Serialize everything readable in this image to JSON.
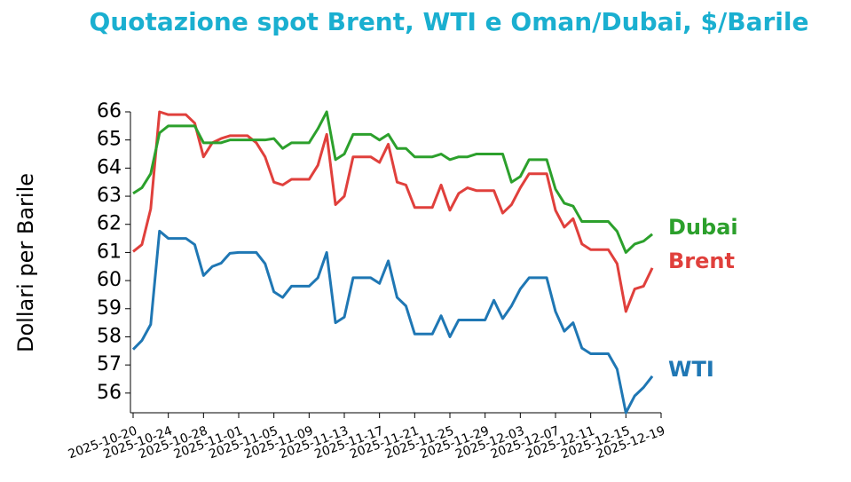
{
  "chart_data": {
    "type": "line",
    "title": "Quotazione spot Brent, WTI e Oman/Dubai, $/Barile",
    "y_label": "Dollari per Barile",
    "x": [
      "2025-10-20",
      "2025-10-21",
      "2025-10-22",
      "2025-10-23",
      "2025-10-24",
      "2025-10-25",
      "2025-10-26",
      "2025-10-27",
      "2025-10-28",
      "2025-10-29",
      "2025-10-30",
      "2025-10-31",
      "2025-11-01",
      "2025-11-02",
      "2025-11-03",
      "2025-11-04",
      "2025-11-05",
      "2025-11-06",
      "2025-11-07",
      "2025-11-08",
      "2025-11-09",
      "2025-11-10",
      "2025-11-11",
      "2025-11-12",
      "2025-11-13",
      "2025-11-14",
      "2025-11-15",
      "2025-11-16",
      "2025-11-17",
      "2025-11-18",
      "2025-11-19",
      "2025-11-20",
      "2025-11-21",
      "2025-11-22",
      "2025-11-23",
      "2025-11-24",
      "2025-11-25",
      "2025-11-26",
      "2025-11-27",
      "2025-11-28",
      "2025-11-29",
      "2025-11-30",
      "2025-12-01",
      "2025-12-02",
      "2025-12-03",
      "2025-12-04",
      "2025-12-05",
      "2025-12-06",
      "2025-12-07",
      "2025-12-08",
      "2025-12-09",
      "2025-12-10",
      "2025-12-11",
      "2025-12-12",
      "2025-12-13",
      "2025-12-14",
      "2025-12-15",
      "2025-12-16",
      "2025-12-17",
      "2025-12-18"
    ],
    "series": [
      {
        "name": "WTI",
        "color": "#1f77b4",
        "values": [
          57.55,
          57.87,
          58.44,
          61.76,
          61.5,
          61.5,
          61.5,
          61.28,
          60.18,
          60.5,
          60.62,
          60.97,
          61.0,
          61.0,
          61.0,
          60.6,
          59.6,
          59.4,
          59.8,
          59.8,
          59.8,
          60.1,
          61.0,
          58.5,
          58.7,
          60.1,
          60.1,
          60.1,
          59.9,
          60.7,
          59.4,
          59.1,
          58.1,
          58.1,
          58.1,
          58.75,
          58.0,
          58.6,
          58.6,
          58.6,
          58.6,
          59.3,
          58.65,
          59.1,
          59.7,
          60.1,
          60.1,
          60.1,
          58.9,
          58.2,
          58.5,
          57.6,
          57.4,
          57.4,
          57.4,
          56.85,
          55.3,
          55.9,
          56.2,
          56.6
        ]
      },
      {
        "name": "Brent",
        "color": "#e0403c",
        "values": [
          61.03,
          61.28,
          62.55,
          66.0,
          65.9,
          65.9,
          65.9,
          65.6,
          64.4,
          64.9,
          65.05,
          65.15,
          65.15,
          65.15,
          64.9,
          64.4,
          63.5,
          63.4,
          63.6,
          63.6,
          63.6,
          64.1,
          65.2,
          62.7,
          63.0,
          64.4,
          64.4,
          64.4,
          64.2,
          64.85,
          63.5,
          63.4,
          62.6,
          62.6,
          62.6,
          63.4,
          62.5,
          63.1,
          63.3,
          63.2,
          63.2,
          63.2,
          62.4,
          62.7,
          63.3,
          63.8,
          63.8,
          63.8,
          62.5,
          61.9,
          62.2,
          61.3,
          61.1,
          61.1,
          61.1,
          60.6,
          58.9,
          59.7,
          59.8,
          60.45
        ]
      },
      {
        "name": "Dubai",
        "color": "#2ca02c",
        "values": [
          63.1,
          63.3,
          63.8,
          65.25,
          65.5,
          65.5,
          65.5,
          65.5,
          64.9,
          64.9,
          64.9,
          65.0,
          65.0,
          65.0,
          65.0,
          65.0,
          65.05,
          64.7,
          64.9,
          64.9,
          64.9,
          65.4,
          66.0,
          64.3,
          64.5,
          65.2,
          65.2,
          65.2,
          65.0,
          65.2,
          64.7,
          64.7,
          64.4,
          64.4,
          64.4,
          64.5,
          64.3,
          64.4,
          64.4,
          64.5,
          64.5,
          64.5,
          64.5,
          63.5,
          63.7,
          64.3,
          64.3,
          64.3,
          63.25,
          62.75,
          62.65,
          62.1,
          62.1,
          62.1,
          62.1,
          61.75,
          61.0,
          61.3,
          61.4,
          61.65
        ]
      }
    ],
    "xlim": [
      "2025-10-20",
      "2025-12-19"
    ],
    "xticks": [
      "2025-10-20",
      "2025-10-24",
      "2025-10-28",
      "2025-11-01",
      "2025-11-05",
      "2025-11-09",
      "2025-11-13",
      "2025-11-17",
      "2025-11-21",
      "2025-11-25",
      "2025-11-29",
      "2025-12-03",
      "2025-12-07",
      "2025-12-11",
      "2025-12-15",
      "2025-12-19"
    ],
    "ylim": [
      55.3,
      66
    ],
    "yticks": [
      56,
      57,
      58,
      59,
      60,
      61,
      62,
      63,
      64,
      65,
      66
    ]
  }
}
